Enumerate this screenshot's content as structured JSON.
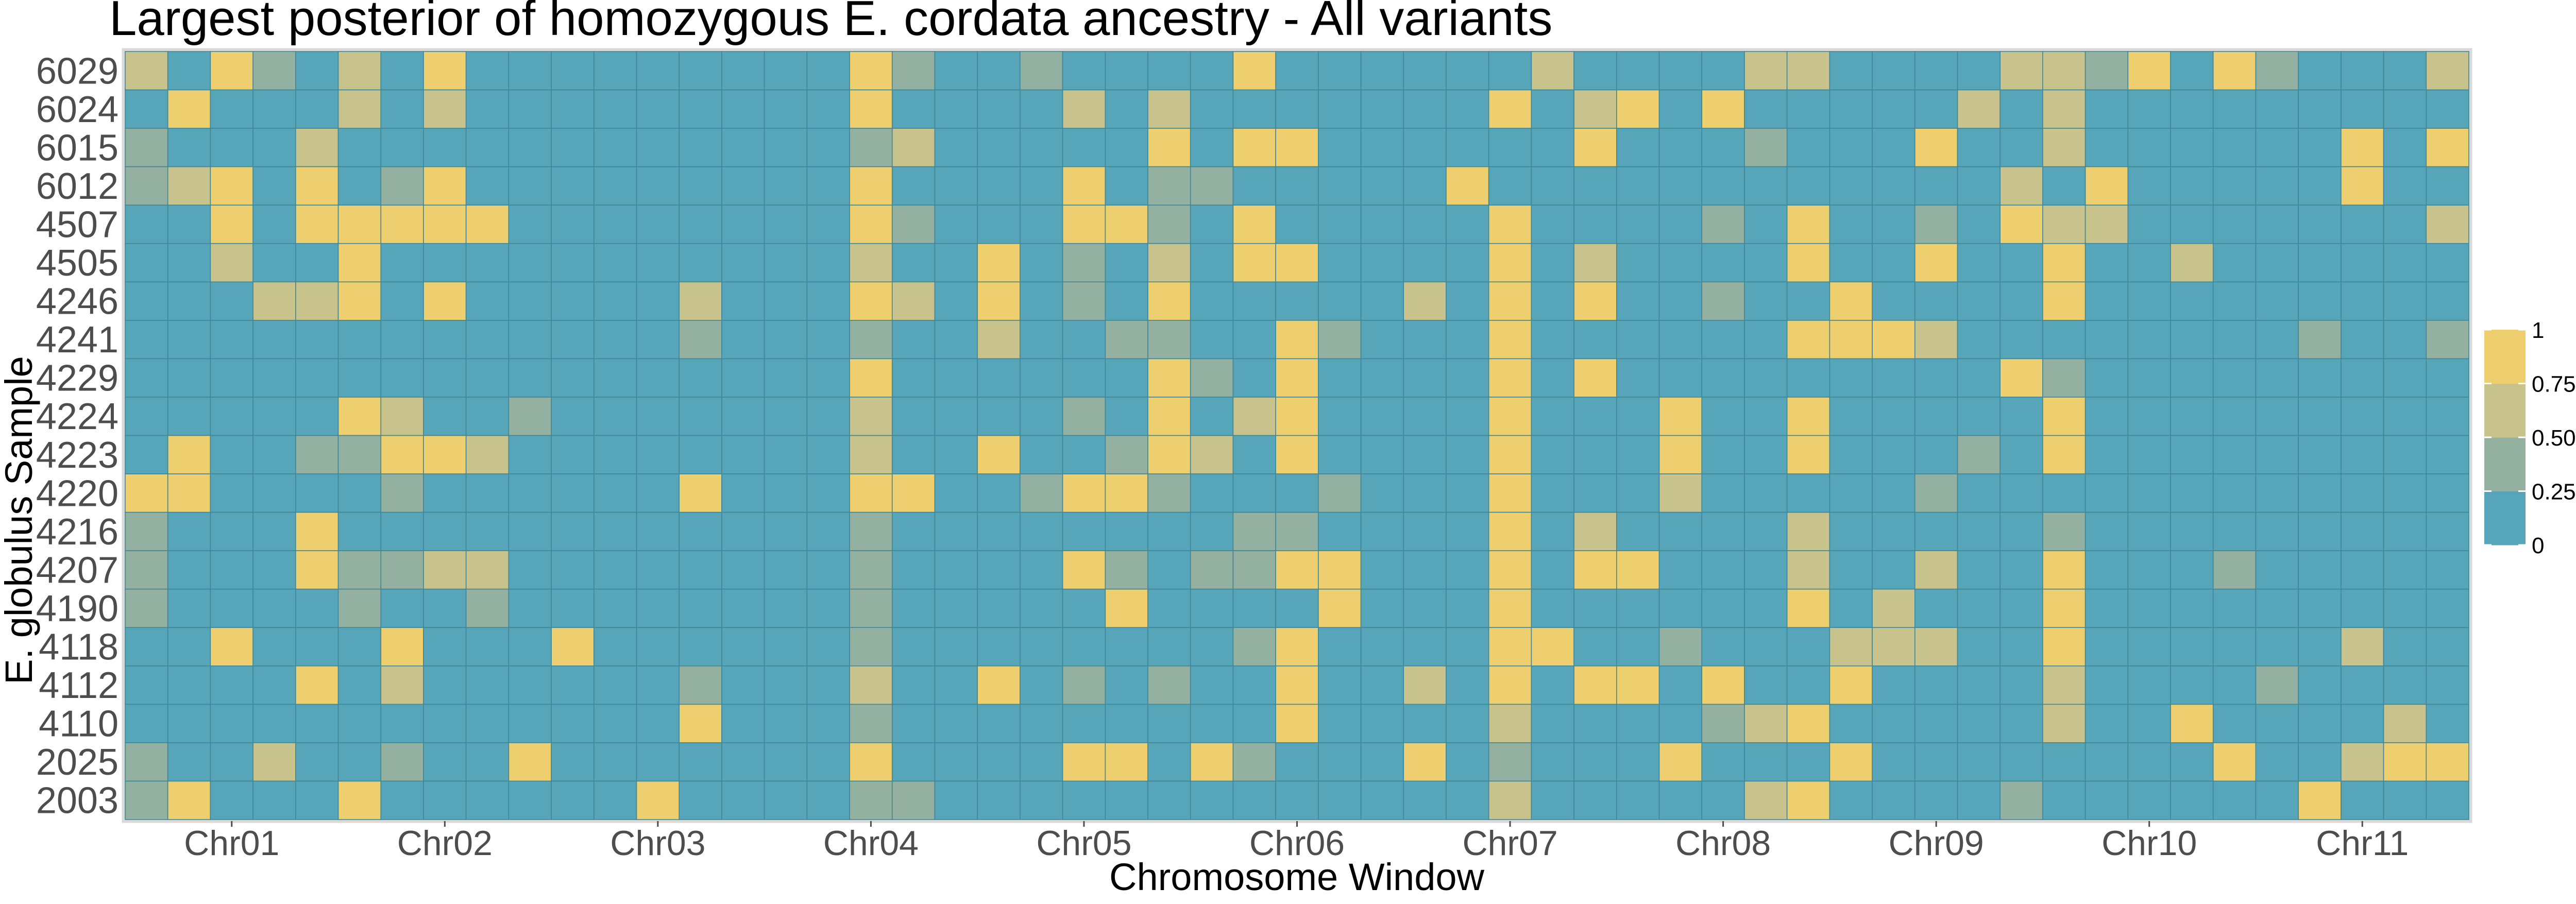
{
  "chart_data": {
    "type": "heatmap",
    "title": "Largest posterior of homozygous E. cordata ancestry - All variants",
    "xlabel": "Chromosome Window",
    "ylabel": "E. globulus Sample",
    "x_tick_labels": [
      "Chr01",
      "Chr02",
      "Chr03",
      "Chr04",
      "Chr05",
      "Chr06",
      "Chr07",
      "Chr08",
      "Chr09",
      "Chr10",
      "Chr11"
    ],
    "x_tick_columns": [
      2.5,
      7.5,
      12.5,
      17.5,
      22.5,
      27.5,
      32.5,
      37.5,
      42.5,
      47.5,
      52.5
    ],
    "y_categories": [
      "6029",
      "6024",
      "6015",
      "6012",
      "4507",
      "4505",
      "4246",
      "4241",
      "4229",
      "4224",
      "4223",
      "4220",
      "4216",
      "4207",
      "4190",
      "4118",
      "4112",
      "4110",
      "2025",
      "2003"
    ],
    "n_windows": 55,
    "value_range": [
      0,
      1
    ],
    "value_levels": [
      0,
      0.33,
      0.67,
      1
    ],
    "colorbar": {
      "ticks": [
        "1",
        "0.75",
        "0.50",
        "0.25",
        "0"
      ],
      "tick_values": [
        1,
        0.75,
        0.5,
        0.25,
        0
      ],
      "colors": [
        "#56a5b9",
        "#93b0a0",
        "#c8c38c",
        "#edcf6f"
      ]
    },
    "rows": [
      "2031020300000000031001000030000002000022000022130310002",
      "0300020200000000030000202000000030230300000202000000000",
      "1000200000000000012000003033000000300010003002000000303",
      "1230301300000000030000301100000300000000000020300000300",
      "0030333330000000031000331030000030000103001032200000002",
      "0020030000000000020030102033000030200003003003002000000",
      "0002230300000200032030103000002030300100300003000000000",
      "0000000000000100010020011003100030000003332000000001001",
      "0000000000000000030000003103000030300000000031000000000",
      "0000032001000000020000103023000030003003000003000000000",
      "0300113320000000020030013203000030003003000103000000000",
      "3300001000000300033001331000100030002000001000000000000",
      "1000300000000000010000000011000030200002000001000000000",
      "1000311220000000010000310113300030330002002003000100000",
      "1000010010000000010000030000300030000003020003000000000",
      "0030003000300000010000000013000033001000222003000000200",
      "0000302000000100020030101003002030330300300002000010000",
      "0000000000000300010000000003000020000123000002003000020",
      "1002001003000000030000330310003010003000300000000300233",
      "1300030000003000011000000000000020000023000010000003000"
    ]
  }
}
